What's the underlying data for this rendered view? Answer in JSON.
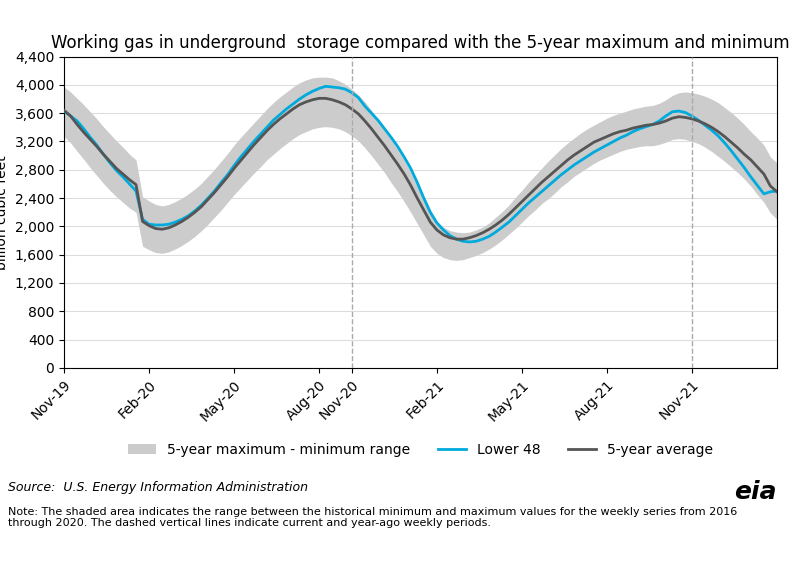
{
  "chart_data": {
    "type": "line",
    "title": "Working gas in underground  storage compared with the 5-year maximum and minimum",
    "ylabel": "billion cubic feet",
    "annotations": [
      "Source:  U.S. Energy Information Administration",
      "Note: The shaded area indicates the range between the historical minimum and maximum values for the weekly series from 2016\nthrough 2020. The dashed vertical lines indicate current and year-ago weekly periods.",
      "eia"
    ],
    "x": [
      0,
      1,
      2,
      3,
      4,
      5,
      6,
      7,
      8,
      9,
      10,
      11,
      12,
      13,
      14,
      15,
      16,
      17,
      18,
      19,
      20,
      21,
      22,
      23,
      24,
      25,
      26,
      27,
      28,
      29,
      30,
      31,
      32,
      33,
      34,
      35,
      36,
      37,
      38,
      39,
      40,
      41,
      42,
      43,
      44,
      45,
      46,
      47,
      48,
      49,
      50,
      51,
      52,
      53,
      54,
      55,
      56,
      57,
      58,
      59,
      60,
      61,
      62,
      63,
      64,
      65,
      66,
      67,
      68,
      69,
      70,
      71,
      72,
      73,
      74,
      75,
      76,
      77,
      78,
      79,
      80,
      81,
      82,
      83,
      84,
      85,
      86,
      87,
      88,
      89,
      90,
      91,
      92,
      93,
      94,
      95,
      96,
      97,
      98,
      99,
      100,
      101,
      102,
      103,
      104,
      105,
      106,
      107,
      108,
      109
    ],
    "xlim": [
      0,
      109
    ],
    "xticks": [
      {
        "value": 0,
        "label": "Nov-19"
      },
      {
        "value": 13,
        "label": "Feb-20"
      },
      {
        "value": 26,
        "label": "May-20"
      },
      {
        "value": 39,
        "label": "Aug-20"
      },
      {
        "value": 44,
        "label": "Nov-20"
      },
      {
        "value": 57,
        "label": "Feb-21"
      },
      {
        "value": 70,
        "label": "May-21"
      },
      {
        "value": 83,
        "label": "Aug-21"
      },
      {
        "value": 96,
        "label": "Nov-21"
      }
    ],
    "ylim": [
      0,
      4400
    ],
    "yticks": [
      0,
      400,
      800,
      {
        "value": 1200,
        "label": "1,200"
      },
      {
        "value": 1600,
        "label": "1,600"
      },
      {
        "value": 2000,
        "label": "2,000"
      },
      {
        "value": 2400,
        "label": "2,400"
      },
      {
        "value": 2800,
        "label": "2,800"
      },
      {
        "value": 3200,
        "label": "3,200"
      },
      {
        "value": 3600,
        "label": "3,600"
      },
      {
        "value": 4000,
        "label": "4,000"
      },
      {
        "value": 4400,
        "label": "4,400"
      }
    ],
    "grid": "y",
    "legend": "upper center",
    "vlines": {
      "x": [
        44,
        96
      ],
      "line_style": "dashed",
      "color": "#aaaaaa"
    },
    "series": [
      {
        "name": "5-year maximum - minimum range",
        "type": "area",
        "color": "#cccccc",
        "lower": [
          3270,
          3180,
          3060,
          2950,
          2830,
          2720,
          2610,
          2510,
          2420,
          2340,
          2260,
          2200,
          1720,
          1670,
          1630,
          1620,
          1640,
          1680,
          1730,
          1790,
          1860,
          1940,
          2030,
          2130,
          2230,
          2340,
          2450,
          2550,
          2650,
          2750,
          2840,
          2940,
          3020,
          3100,
          3170,
          3240,
          3300,
          3340,
          3380,
          3400,
          3410,
          3400,
          3380,
          3340,
          3280,
          3210,
          3110,
          3000,
          2880,
          2760,
          2620,
          2490,
          2350,
          2200,
          2040,
          1880,
          1720,
          1620,
          1560,
          1530,
          1520,
          1530,
          1560,
          1590,
          1630,
          1680,
          1740,
          1810,
          1890,
          1970,
          2060,
          2150,
          2230,
          2320,
          2390,
          2470,
          2560,
          2630,
          2710,
          2770,
          2830,
          2890,
          2940,
          2980,
          3020,
          3060,
          3090,
          3110,
          3130,
          3140,
          3140,
          3160,
          3190,
          3230,
          3240,
          3230,
          3200,
          3170,
          3120,
          3060,
          2990,
          2920,
          2840,
          2760,
          2670,
          2570,
          2450,
          2340,
          2190,
          2100
        ],
        "upper": [
          3970,
          3900,
          3810,
          3720,
          3620,
          3520,
          3410,
          3310,
          3210,
          3120,
          3020,
          2940,
          2420,
          2360,
          2310,
          2290,
          2310,
          2350,
          2400,
          2460,
          2530,
          2610,
          2710,
          2810,
          2920,
          3030,
          3150,
          3260,
          3360,
          3460,
          3560,
          3660,
          3750,
          3830,
          3900,
          3970,
          4030,
          4070,
          4100,
          4110,
          4110,
          4100,
          4060,
          4010,
          3940,
          3860,
          3760,
          3640,
          3510,
          3380,
          3240,
          3090,
          2940,
          2770,
          2570,
          2380,
          2200,
          2070,
          1990,
          1940,
          1920,
          1910,
          1920,
          1950,
          1990,
          2050,
          2130,
          2210,
          2300,
          2410,
          2510,
          2620,
          2720,
          2820,
          2920,
          3010,
          3100,
          3180,
          3250,
          3320,
          3380,
          3430,
          3480,
          3530,
          3570,
          3600,
          3630,
          3660,
          3680,
          3700,
          3710,
          3740,
          3790,
          3850,
          3890,
          3900,
          3890,
          3870,
          3840,
          3800,
          3750,
          3680,
          3610,
          3530,
          3440,
          3340,
          3250,
          3150,
          2980,
          2900
        ]
      },
      {
        "name": "Lower 48",
        "type": "line",
        "color": "#00aadd",
        "values": [
          3630,
          3560,
          3490,
          3380,
          3260,
          3150,
          3020,
          2900,
          2790,
          2700,
          2600,
          2500,
          2100,
          2030,
          2020,
          2020,
          2030,
          2060,
          2100,
          2150,
          2220,
          2300,
          2400,
          2500,
          2620,
          2730,
          2860,
          2980,
          3090,
          3200,
          3300,
          3400,
          3500,
          3580,
          3660,
          3730,
          3800,
          3860,
          3910,
          3950,
          3980,
          3970,
          3960,
          3940,
          3890,
          3820,
          3700,
          3600,
          3500,
          3380,
          3260,
          3130,
          2980,
          2820,
          2620,
          2400,
          2200,
          2050,
          1950,
          1870,
          1820,
          1790,
          1780,
          1790,
          1820,
          1860,
          1920,
          1990,
          2060,
          2150,
          2240,
          2330,
          2410,
          2490,
          2570,
          2650,
          2730,
          2800,
          2870,
          2930,
          2990,
          3050,
          3100,
          3150,
          3200,
          3250,
          3290,
          3340,
          3380,
          3410,
          3440,
          3490,
          3560,
          3620,
          3630,
          3610,
          3560,
          3500,
          3430,
          3360,
          3280,
          3180,
          3070,
          2950,
          2830,
          2700,
          2580,
          2460,
          2490,
          2500
        ]
      },
      {
        "name": "5-year average",
        "type": "line",
        "color": "#555555",
        "values": [
          3640,
          3560,
          3440,
          3330,
          3230,
          3130,
          3020,
          2920,
          2820,
          2740,
          2660,
          2590,
          2070,
          2010,
          1970,
          1960,
          1980,
          2020,
          2070,
          2130,
          2200,
          2280,
          2380,
          2480,
          2590,
          2700,
          2820,
          2930,
          3040,
          3150,
          3250,
          3350,
          3440,
          3520,
          3590,
          3660,
          3720,
          3760,
          3790,
          3810,
          3810,
          3790,
          3760,
          3720,
          3660,
          3590,
          3490,
          3380,
          3260,
          3140,
          3010,
          2880,
          2740,
          2580,
          2400,
          2230,
          2060,
          1950,
          1880,
          1840,
          1820,
          1820,
          1840,
          1870,
          1910,
          1960,
          2020,
          2090,
          2170,
          2260,
          2350,
          2440,
          2530,
          2620,
          2700,
          2780,
          2860,
          2940,
          3010,
          3070,
          3130,
          3190,
          3230,
          3270,
          3310,
          3340,
          3360,
          3390,
          3410,
          3430,
          3440,
          3460,
          3490,
          3530,
          3550,
          3540,
          3520,
          3490,
          3450,
          3400,
          3340,
          3270,
          3190,
          3110,
          3020,
          2940,
          2840,
          2740,
          2570,
          2490
        ]
      }
    ]
  }
}
